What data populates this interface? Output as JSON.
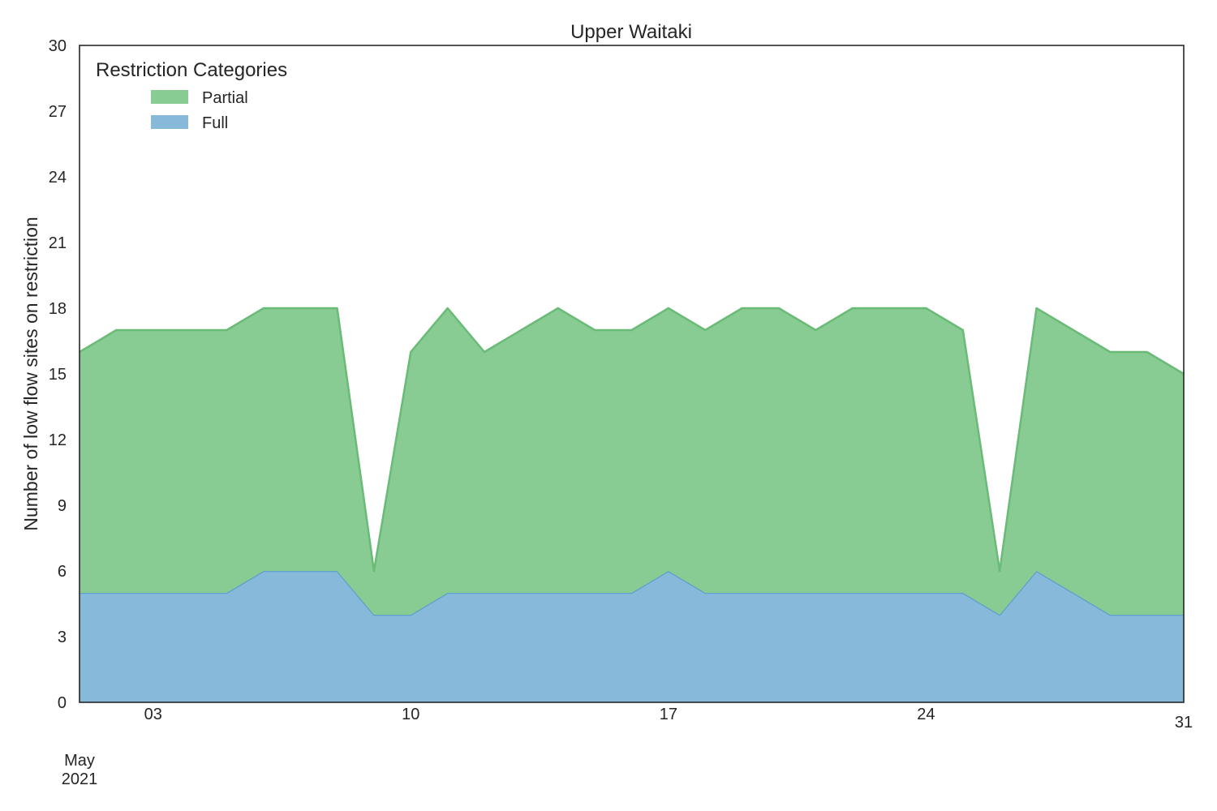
{
  "chart_data": {
    "type": "area",
    "stacked": true,
    "title": "Upper Waitaki",
    "xlabel": "",
    "ylabel": "Number of low flow sites on restriction",
    "ylim": [
      0,
      30
    ],
    "xlim": [
      "2021-05-01",
      "2021-05-31"
    ],
    "yticks": [
      0,
      3,
      6,
      9,
      12,
      15,
      18,
      21,
      24,
      27,
      30
    ],
    "xticks": [
      {
        "date": "2021-05-03",
        "label": "03"
      },
      {
        "date": "2021-05-10",
        "label": "10"
      },
      {
        "date": "2021-05-17",
        "label": "17"
      },
      {
        "date": "2021-05-24",
        "label": "24"
      },
      {
        "date": "2021-05-31",
        "label": "31"
      }
    ],
    "x_offset_label": [
      "May",
      "2021"
    ],
    "grid": false,
    "legend": {
      "title": "Restriction Categories",
      "placement": "top-left",
      "entries": [
        "Partial",
        "Full"
      ]
    },
    "x": [
      "2021-05-01",
      "2021-05-02",
      "2021-05-03",
      "2021-05-04",
      "2021-05-05",
      "2021-05-06",
      "2021-05-07",
      "2021-05-08",
      "2021-05-09",
      "2021-05-10",
      "2021-05-11",
      "2021-05-12",
      "2021-05-13",
      "2021-05-14",
      "2021-05-15",
      "2021-05-16",
      "2021-05-17",
      "2021-05-18",
      "2021-05-19",
      "2021-05-20",
      "2021-05-21",
      "2021-05-22",
      "2021-05-23",
      "2021-05-24",
      "2021-05-25",
      "2021-05-26",
      "2021-05-27",
      "2021-05-28",
      "2021-05-29",
      "2021-05-30",
      "2021-05-31"
    ],
    "series": [
      {
        "name": "Full",
        "color": "#87b9da",
        "line_color": "#5fa0cc",
        "values": [
          5,
          5,
          5,
          5,
          5,
          6,
          6,
          6,
          4,
          4,
          5,
          5,
          5,
          5,
          5,
          5,
          6,
          5,
          5,
          5,
          5,
          5,
          5,
          5,
          5,
          4,
          6,
          5,
          4,
          4,
          4
        ]
      },
      {
        "name": "Partial",
        "color": "#88cb93",
        "line_color": "#6abb78",
        "values": [
          11,
          12,
          12,
          12,
          12,
          12,
          12,
          12,
          2,
          12,
          13,
          11,
          12,
          13,
          12,
          12,
          12,
          12,
          13,
          13,
          12,
          13,
          13,
          13,
          12,
          2,
          12,
          12,
          12,
          12,
          11
        ]
      }
    ]
  }
}
